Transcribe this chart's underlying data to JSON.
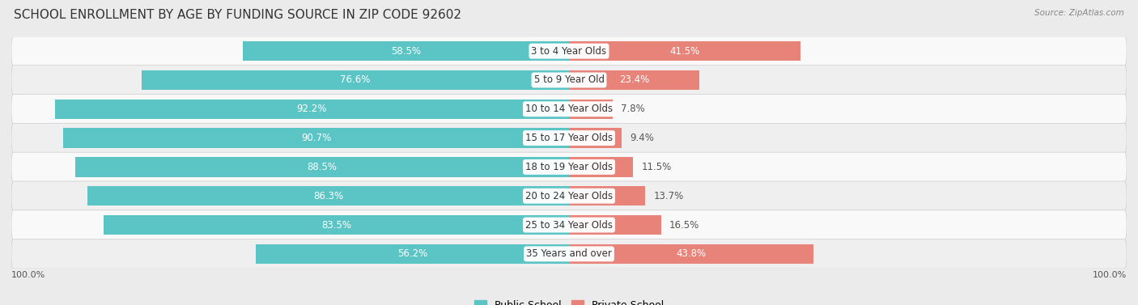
{
  "title": "SCHOOL ENROLLMENT BY AGE BY FUNDING SOURCE IN ZIP CODE 92602",
  "source": "Source: ZipAtlas.com",
  "categories": [
    "3 to 4 Year Olds",
    "5 to 9 Year Old",
    "10 to 14 Year Olds",
    "15 to 17 Year Olds",
    "18 to 19 Year Olds",
    "20 to 24 Year Olds",
    "25 to 34 Year Olds",
    "35 Years and over"
  ],
  "public_pct": [
    58.5,
    76.6,
    92.2,
    90.7,
    88.5,
    86.3,
    83.5,
    56.2
  ],
  "private_pct": [
    41.5,
    23.4,
    7.8,
    9.4,
    11.5,
    13.7,
    16.5,
    43.8
  ],
  "public_color": "#5bc4c4",
  "private_color": "#e8837a",
  "label_color_white": "#ffffff",
  "label_color_dark": "#555555",
  "bg_color": "#ebebeb",
  "row_bg_light": "#f9f9f9",
  "row_bg_dark": "#efefef",
  "axis_label_left": "100.0%",
  "axis_label_right": "100.0%",
  "title_fontsize": 11,
  "label_fontsize": 8.5,
  "category_fontsize": 8.5,
  "white_label_threshold": 20
}
